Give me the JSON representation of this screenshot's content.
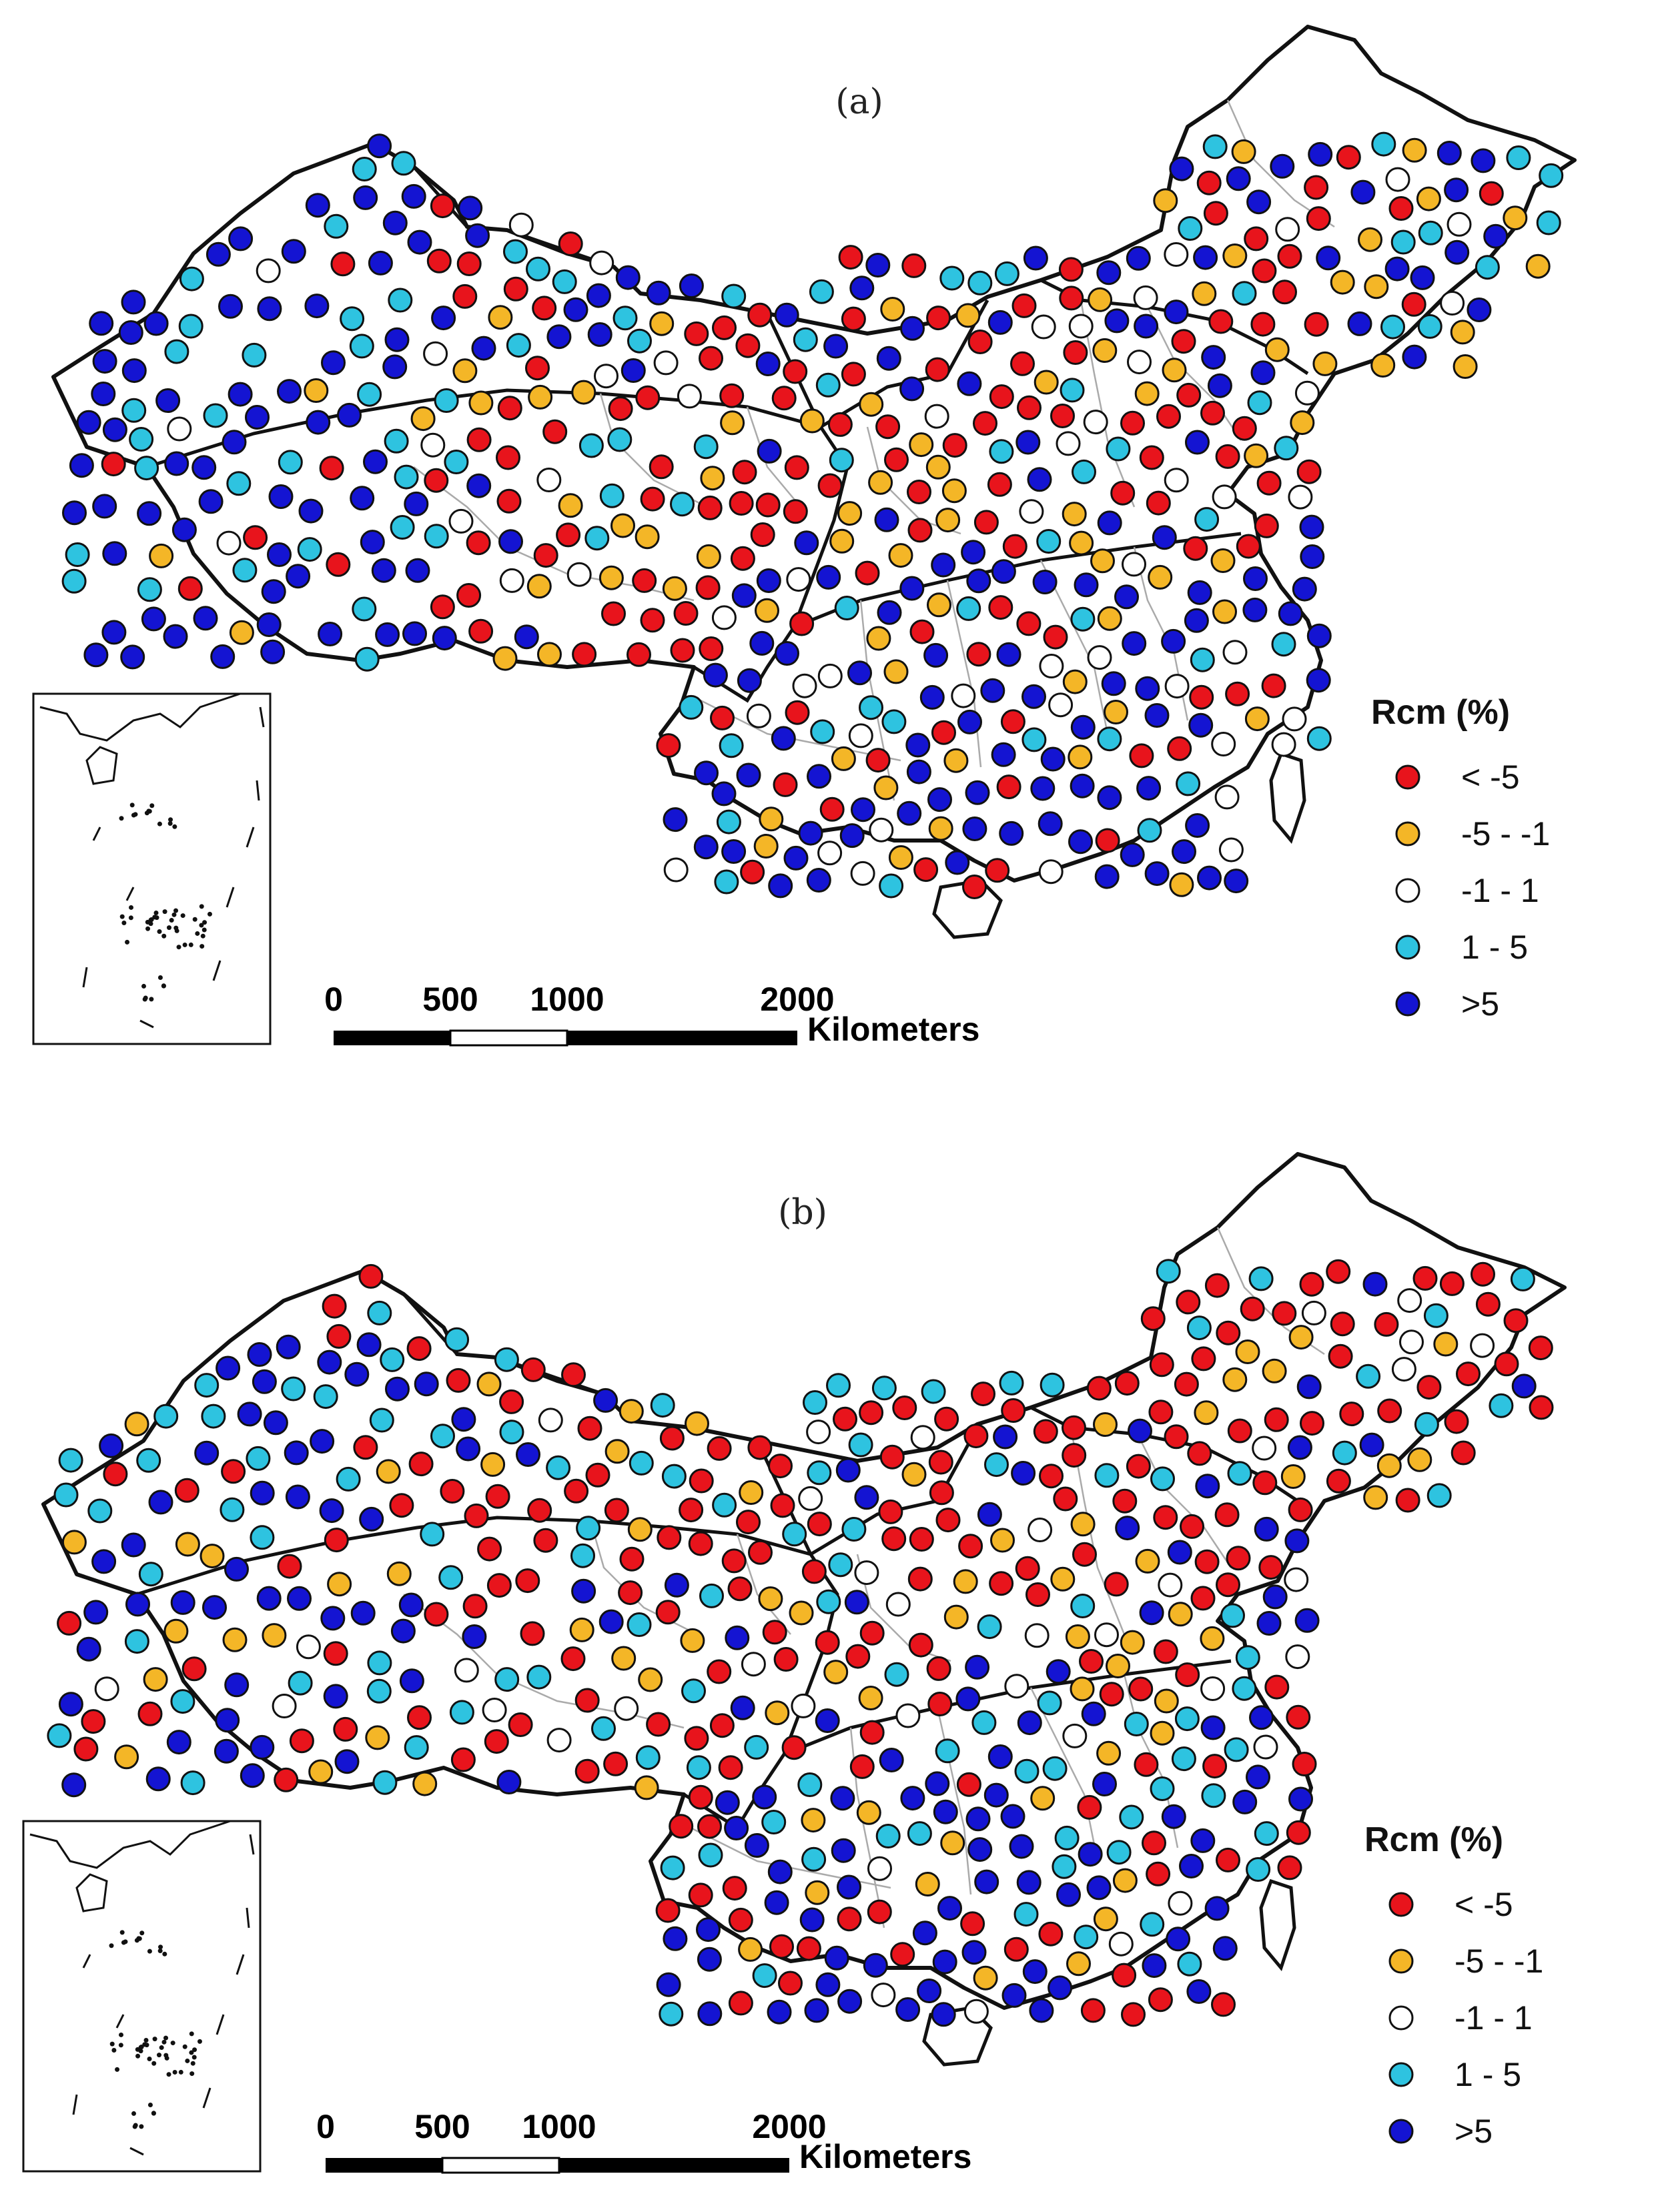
{
  "panels": [
    {
      "label": "(a)",
      "legend_title": "Rcm (%)",
      "scale": {
        "ticks": [
          "0",
          "500",
          "1000",
          "2000"
        ],
        "unit": "Kilometers"
      }
    },
    {
      "label": "(b)",
      "legend_title": "Rcm (%)",
      "scale": {
        "ticks": [
          "0",
          "500",
          "1000",
          "2000"
        ],
        "unit": "Kilometers"
      }
    }
  ],
  "classes": [
    {
      "label": "< -5",
      "color": "#e8141c"
    },
    {
      "label": "-5 - -1",
      "color": "#f4b627"
    },
    {
      "label": "-1 - 1",
      "color": "#ffffff"
    },
    {
      "label": "1 - 5",
      "color": "#2ec3e0"
    },
    {
      "label": ">5",
      "color": "#1414d2"
    }
  ]
}
